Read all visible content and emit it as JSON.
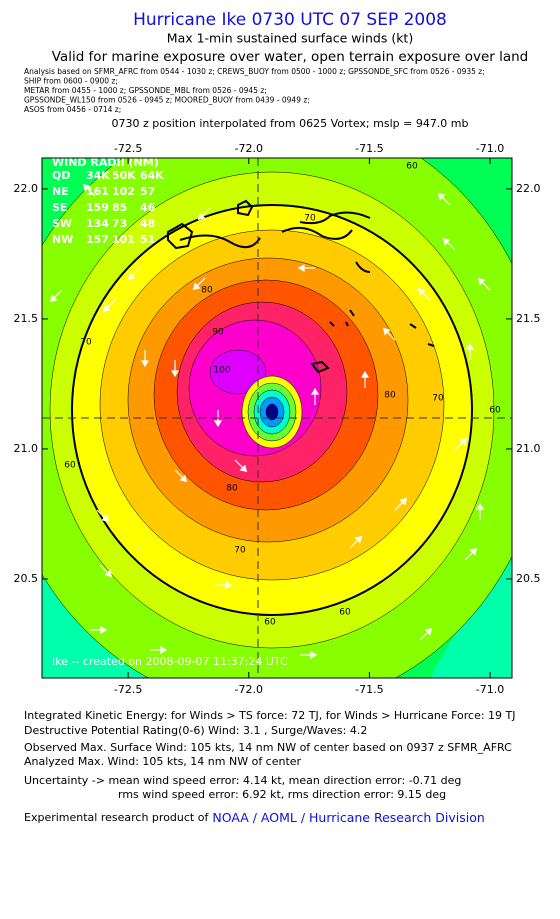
{
  "header": {
    "title": "Hurricane Ike 0730 UTC 07 SEP 2008",
    "subtitle": "Max 1-min sustained surface winds (kt)",
    "valid": "Valid for marine exposure over water, open terrain exposure over land",
    "analysis_lines": [
      "Analysis based on  SFMR_AFRC from 0544 - 1030 z;  CREWS_BUOY from 0500 - 1000 z;  GPSSONDE_SFC from 0526 - 0935 z;",
      "SHIP from 0600 - 0900 z;",
      "METAR from 0455 - 1000 z;  GPSSONDE_MBL from 0526 - 0945 z;",
      "GPSSONDE_WL150 from 0526 - 0945 z;   MOORED_BUOY from 0439 - 0949 z;",
      "ASOS from 0456 - 0714 z;"
    ],
    "position": "0730 z position interpolated from 0625 Vortex; mslp = 947.0 mb"
  },
  "map": {
    "xlim": [
      -72.857,
      -70.909
    ],
    "ylim": [
      20.119,
      22.119
    ],
    "xticks": [
      -72.5,
      {
        "value": -72.0,
        "label": "-72.0"
      },
      -71.5,
      {
        "value": -71.0,
        "label": "-71.0"
      }
    ],
    "yticks": [
      {
        "value": 22.0,
        "label": "22.0"
      },
      21.5,
      {
        "value": 21.0,
        "label": "21.0"
      },
      20.5
    ],
    "contour_levels": [
      60,
      70,
      80,
      90,
      100
    ],
    "wind_radii": {
      "title": "WIND RADII (NM)",
      "header": [
        "QD",
        "34K",
        "50K",
        "64K"
      ],
      "rows": [
        [
          "NE",
          "161",
          "102",
          "57"
        ],
        [
          "SE",
          "159",
          "85",
          "46"
        ],
        [
          "SW",
          "134",
          "73",
          "48"
        ],
        [
          "NW",
          "157",
          "101",
          "51"
        ]
      ]
    },
    "credit": "Ike -- created on 2008-09-07 11:37:24 UTC"
  },
  "footer": {
    "lines": [
      "Integrated Kinetic Energy:  for Winds > TS force: 72 TJ,  for Winds > Hurricane Force: 19 TJ",
      "Destructive Potential Rating(0-6)   Wind: 3.1 , Surge/Waves: 4.2",
      "Observed Max. Surface Wind: 105 kts, 14 nm NW of center based on 0937 z SFMR_AFRC",
      "Analyzed Max. Wind: 105 kts, 14 nm NW of center",
      "Uncertainty -> mean wind speed error: 4.14 kt,   mean direction error:  -0.71 deg",
      "rms wind speed error: 6.92 kt,   rms direction error: 9.15 deg"
    ],
    "product": "Experimental research product of",
    "link": "NOAA / AOML / Hurricane Research Division"
  }
}
